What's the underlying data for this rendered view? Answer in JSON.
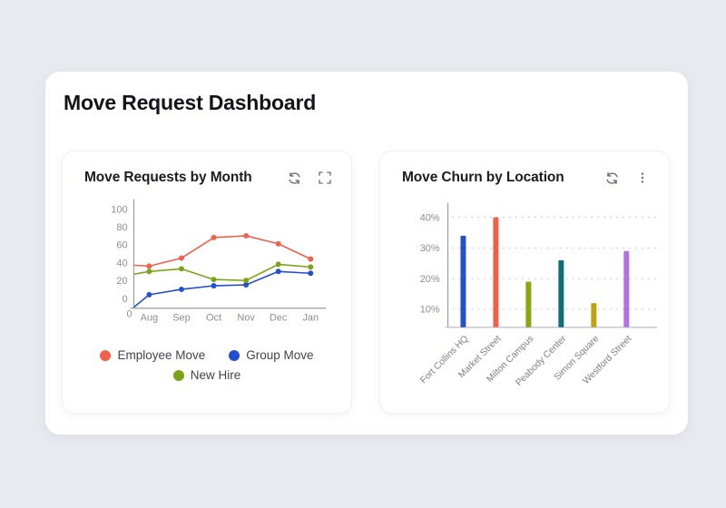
{
  "page": {
    "title": "Move Request Dashboard"
  },
  "cards": [
    {
      "title": "Move Requests by Month",
      "actions": [
        "refresh",
        "fullscreen"
      ]
    },
    {
      "title": "Move Churn by Location",
      "actions": [
        "refresh",
        "menu"
      ]
    }
  ],
  "chart_data": [
    {
      "type": "line",
      "title": "Move Requests by Month",
      "categories": [
        "Aug",
        "Sep",
        "Oct",
        "Nov",
        "Dec",
        "Jan"
      ],
      "x_origin_label": "0",
      "yticks": [
        0,
        20,
        40,
        60,
        80,
        100
      ],
      "ylim": [
        0,
        100
      ],
      "grid": false,
      "legend_position": "bottom",
      "series": [
        {
          "name": "Employee Move",
          "color": "#F0604A",
          "origin_value": 37,
          "values": [
            36,
            45,
            68,
            70,
            61,
            44
          ]
        },
        {
          "name": "Group Move",
          "color": "#2350CF",
          "origin_value": -10,
          "values": [
            4,
            10,
            14,
            15,
            30,
            28
          ]
        },
        {
          "name": "New Hire",
          "color": "#7CA318",
          "origin_value": 27,
          "values": [
            30,
            33,
            21,
            20,
            38,
            35
          ]
        }
      ]
    },
    {
      "type": "bar",
      "title": "Move Churn by Location",
      "categories": [
        "Fort Collins HQ",
        "Market Street",
        "Milton Campus",
        "Peabody Center",
        "Simon Square",
        "Westford Street"
      ],
      "values": [
        34,
        40,
        19,
        26,
        12,
        29
      ],
      "unit": "%",
      "bar_colors": [
        "#2350CF",
        "#F0604A",
        "#88A80F",
        "#0E6F74",
        "#C3A00F",
        "#B46FE6"
      ],
      "yticks": [
        10,
        20,
        30,
        40
      ],
      "ylim": [
        5,
        43
      ],
      "grid": "dotted-horizontal",
      "legend_position": "none"
    }
  ],
  "colors": {
    "page_bg": "#E9E9F0",
    "card_bg": "#FFFFFF",
    "title_text": "#14141C",
    "axis_text": "#8C8C99",
    "icon": "#6D6D78"
  }
}
